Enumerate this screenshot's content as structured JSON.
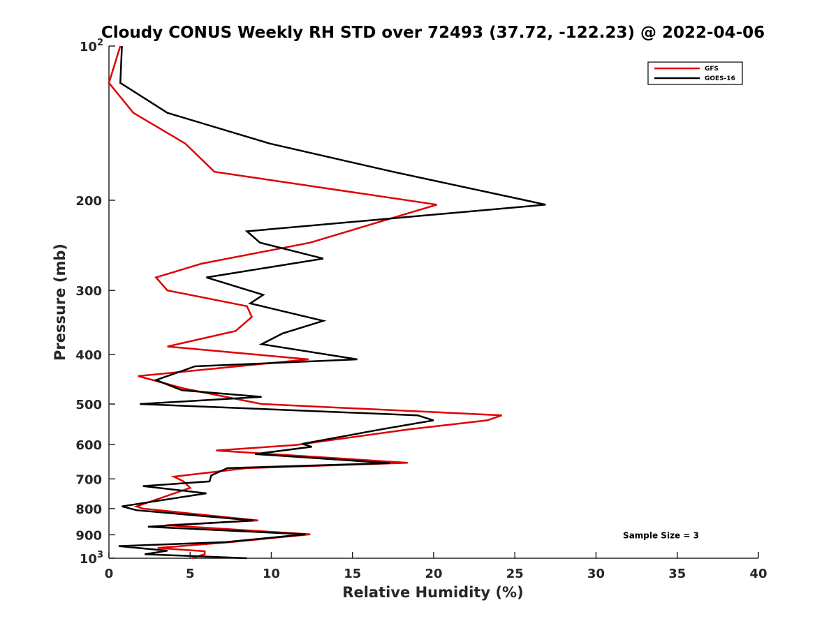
{
  "chart_data": {
    "type": "line",
    "title": "Cloudy CONUS Weekly RH STD over 72493 (37.72, -122.23) @ 2022-04-06",
    "xlabel": "Relative Humidity (%)",
    "ylabel": "Pressure (mb)",
    "xlim": [
      0,
      40
    ],
    "ylim": [
      100,
      1000
    ],
    "y_scale": "log",
    "y_reversed": true,
    "grid": false,
    "legend_position": "top-right",
    "x_ticks": [
      0,
      5,
      10,
      15,
      20,
      25,
      30,
      35,
      40
    ],
    "y_ticks": [
      {
        "value": 100,
        "label": "10",
        "sup": "2"
      },
      {
        "value": 200,
        "label": "200"
      },
      {
        "value": 300,
        "label": "300"
      },
      {
        "value": 400,
        "label": "400"
      },
      {
        "value": 500,
        "label": "500"
      },
      {
        "value": 600,
        "label": "600"
      },
      {
        "value": 700,
        "label": "700"
      },
      {
        "value": 800,
        "label": "800"
      },
      {
        "value": 900,
        "label": "900"
      },
      {
        "value": 1000,
        "label": "10",
        "sup": "3"
      }
    ],
    "series": [
      {
        "name": "GFS",
        "color": "#e00000",
        "points": [
          [
            0.7,
            100
          ],
          [
            0.0,
            118
          ],
          [
            1.5,
            135
          ],
          [
            4.7,
            155
          ],
          [
            6.5,
            176
          ],
          [
            20.2,
            204
          ],
          [
            12.4,
            242
          ],
          [
            5.7,
            266
          ],
          [
            2.9,
            283
          ],
          [
            3.6,
            300
          ],
          [
            8.5,
            322
          ],
          [
            8.8,
            338
          ],
          [
            7.8,
            360
          ],
          [
            3.6,
            386
          ],
          [
            12.3,
            409
          ],
          [
            1.8,
            441
          ],
          [
            4.6,
            466
          ],
          [
            9.4,
            500
          ],
          [
            24.2,
            526
          ],
          [
            23.3,
            538
          ],
          [
            18.5,
            560
          ],
          [
            11.5,
            601
          ],
          [
            6.6,
            616
          ],
          [
            18.4,
            651
          ],
          [
            8.5,
            667
          ],
          [
            4.0,
            693
          ],
          [
            4.6,
            708
          ],
          [
            5.0,
            729
          ],
          [
            1.7,
            792
          ],
          [
            2.1,
            800
          ],
          [
            9.2,
            844
          ],
          [
            3.5,
            862
          ],
          [
            12.4,
            898
          ],
          [
            7.5,
            930
          ],
          [
            3.0,
            955
          ],
          [
            5.9,
            969
          ],
          [
            5.9,
            982
          ],
          [
            5.1,
            1000
          ]
        ]
      },
      {
        "name": "GOES-16",
        "color": "#000000",
        "points": [
          [
            0.8,
            100
          ],
          [
            0.7,
            118
          ],
          [
            3.6,
            135
          ],
          [
            9.9,
            155
          ],
          [
            17.5,
            176
          ],
          [
            26.9,
            204
          ],
          [
            8.5,
            230
          ],
          [
            9.3,
            242
          ],
          [
            13.2,
            260
          ],
          [
            6.0,
            283
          ],
          [
            9.5,
            306
          ],
          [
            8.7,
            318
          ],
          [
            13.2,
            344
          ],
          [
            10.7,
            364
          ],
          [
            9.4,
            382
          ],
          [
            15.3,
            409
          ],
          [
            5.3,
            422
          ],
          [
            2.9,
            449
          ],
          [
            4.5,
            470
          ],
          [
            9.4,
            484
          ],
          [
            1.9,
            500
          ],
          [
            19.0,
            526
          ],
          [
            20.0,
            538
          ],
          [
            16.8,
            560
          ],
          [
            11.9,
            598
          ],
          [
            12.5,
            606
          ],
          [
            9.0,
            626
          ],
          [
            17.3,
            652
          ],
          [
            7.3,
            667
          ],
          [
            6.3,
            689
          ],
          [
            6.2,
            708
          ],
          [
            2.1,
            723
          ],
          [
            6.0,
            747
          ],
          [
            0.8,
            792
          ],
          [
            1.7,
            806
          ],
          [
            8.9,
            844
          ],
          [
            2.4,
            868
          ],
          [
            12.1,
            898
          ],
          [
            7.2,
            930
          ],
          [
            0.6,
            947
          ],
          [
            3.6,
            967
          ],
          [
            2.2,
            982
          ],
          [
            8.5,
            1000
          ]
        ]
      }
    ],
    "annotations": [
      {
        "text": "Sample Size = 3",
        "x": 34.0,
        "y": 900
      }
    ]
  }
}
